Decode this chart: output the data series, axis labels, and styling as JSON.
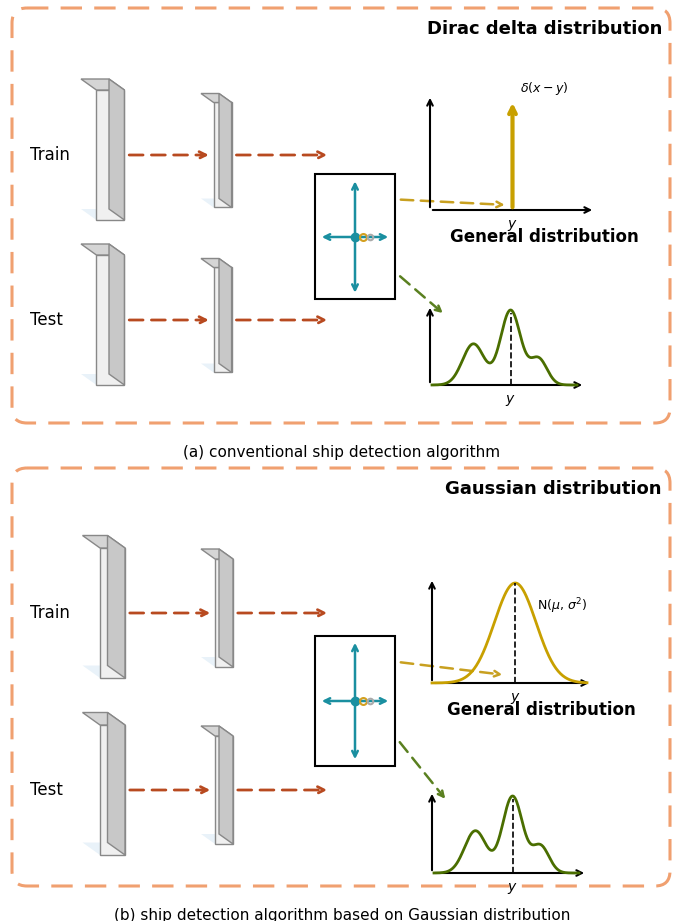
{
  "fig_width": 6.85,
  "fig_height": 9.21,
  "bg_color": "#ffffff",
  "dashed_border_color": "#F0A070",
  "panel_a_caption": "(a) conventional ship detection algorithm",
  "panel_b_caption": "(b) ship detection algorithm based on Gaussian distribution",
  "train_label": "Train",
  "test_label": "Test",
  "arrow_color": "#B84A20",
  "dirac_title": "Dirac delta distribution",
  "gaussian_title": "Gaussian distribution",
  "general_title": "General distribution",
  "dirac_color": "#C8A000",
  "gaussian_color": "#C8A000",
  "general_color": "#4A6E00",
  "box_color": "#1A8FA0",
  "dashed_arrow_color_gold": "#C8A020",
  "dashed_arrow_color_green": "#5A8020",
  "slab_face_color": "#E8E8E8",
  "slab_side_color": "#C0C0C0",
  "slab_top_color": "#D8D8D8",
  "slab_blue_color": "#C8E0F0",
  "slab_edge_color": "#888888"
}
